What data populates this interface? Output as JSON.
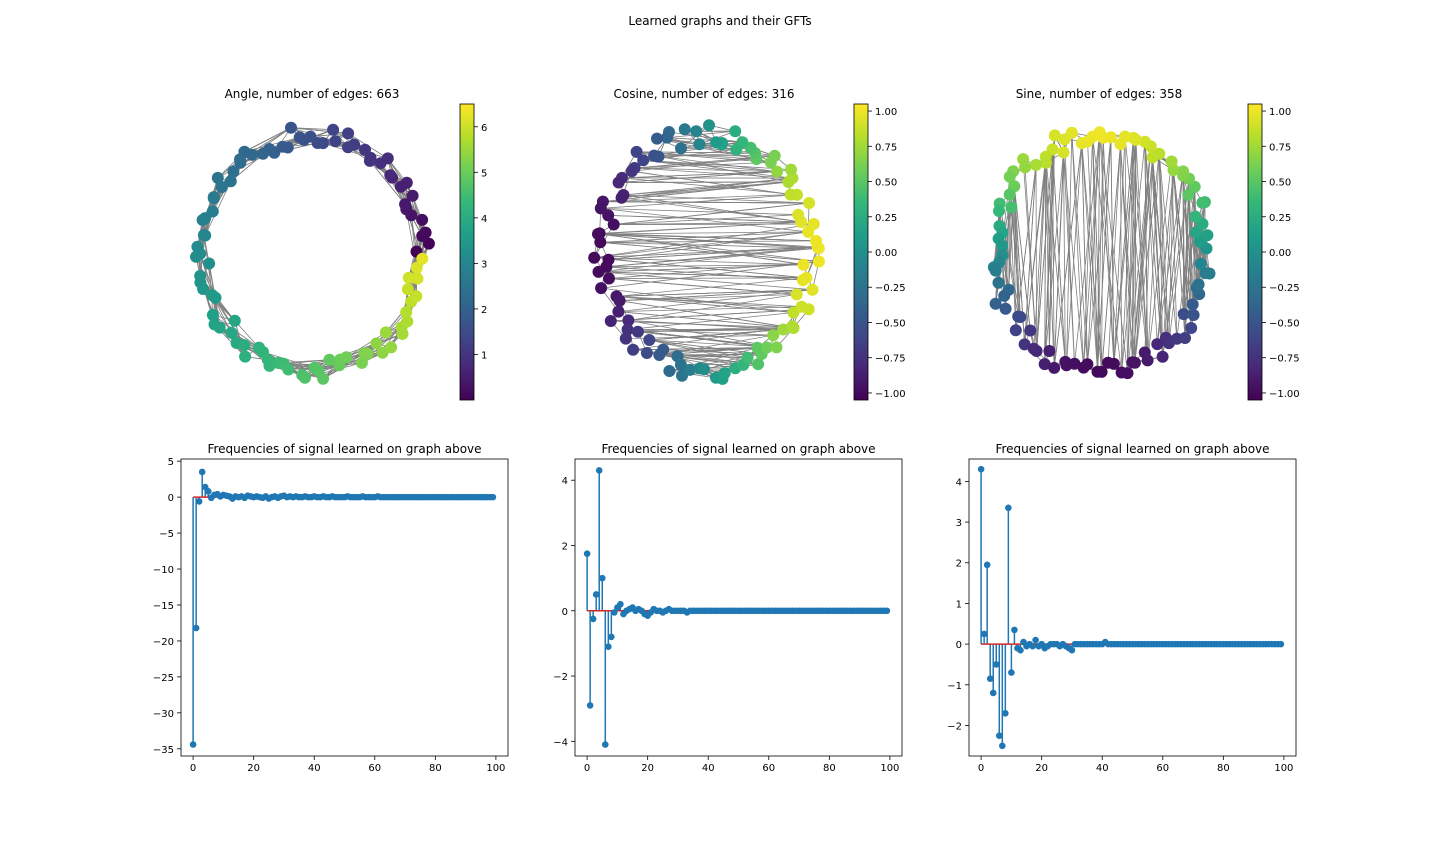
{
  "figure_title": "Learned graphs and their GFTs",
  "colors": {
    "edge": "#808080",
    "stem": "#1f77b4",
    "baseline": "#d62728",
    "viridis": [
      "#440154",
      "#482878",
      "#3e4989",
      "#31688e",
      "#26828e",
      "#1f9e89",
      "#35b779",
      "#6ece58",
      "#b5de2b",
      "#fde725"
    ]
  },
  "chart_data": [
    {
      "type": "scatter",
      "kind": "graph",
      "title": "Angle, number of edges: 663",
      "node_count": 100,
      "edge_count": 663,
      "colorbar": {
        "range": [
          0,
          6.5
        ],
        "ticks": [
          "1",
          "2",
          "3",
          "4",
          "5",
          "6"
        ]
      }
    },
    {
      "type": "scatter",
      "kind": "graph",
      "title": "Cosine, number of edges: 316",
      "node_count": 100,
      "edge_count": 316,
      "colorbar": {
        "range": [
          -1.05,
          1.05
        ],
        "ticks": [
          "−1.00",
          "−0.75",
          "−0.50",
          "−0.25",
          "0.00",
          "0.25",
          "0.50",
          "0.75",
          "1.00"
        ]
      }
    },
    {
      "type": "scatter",
      "kind": "graph",
      "title": "Sine, number of edges: 358",
      "node_count": 100,
      "edge_count": 358,
      "colorbar": {
        "range": [
          -1.05,
          1.05
        ],
        "ticks": [
          "−1.00",
          "−0.75",
          "−0.50",
          "−0.25",
          "0.00",
          "0.25",
          "0.50",
          "0.75",
          "1.00"
        ]
      }
    },
    {
      "type": "stem",
      "title": "Frequencies of signal learned on graph above",
      "xlim": [
        -4,
        104
      ],
      "ylim": [
        -36,
        5.3
      ],
      "xticks": [
        "0",
        "20",
        "40",
        "60",
        "80",
        "100"
      ],
      "yticks": [
        "−35",
        "−30",
        "−25",
        "−20",
        "−15",
        "−10",
        "−5",
        "0",
        "5"
      ],
      "points": [
        [
          0,
          -34.4
        ],
        [
          1,
          -18.2
        ],
        [
          2,
          -0.6
        ],
        [
          3,
          3.5
        ],
        [
          4,
          1.4
        ],
        [
          5,
          0.8
        ],
        [
          6,
          -0.1
        ],
        [
          7,
          0.3
        ],
        [
          8,
          0.4
        ],
        [
          9,
          0.1
        ],
        [
          10,
          0.3
        ],
        [
          11,
          0.2
        ],
        [
          12,
          0.1
        ],
        [
          13,
          -0.2
        ],
        [
          14,
          0.1
        ],
        [
          15,
          0.0
        ],
        [
          16,
          0.1
        ],
        [
          17,
          -0.1
        ],
        [
          18,
          0.2
        ],
        [
          19,
          0.1
        ],
        [
          20,
          0.0
        ],
        [
          21,
          0.1
        ],
        [
          22,
          0.0
        ],
        [
          23,
          -0.1
        ],
        [
          24,
          0.1
        ],
        [
          25,
          -0.2
        ],
        [
          26,
          0.0
        ],
        [
          27,
          0.1
        ],
        [
          28,
          -0.1
        ],
        [
          29,
          0.1
        ],
        [
          30,
          0.2
        ],
        [
          31,
          0.0
        ],
        [
          32,
          0.1
        ],
        [
          33,
          0.0
        ],
        [
          34,
          0.1
        ],
        [
          35,
          0.0
        ],
        [
          36,
          0.0
        ],
        [
          37,
          0.1
        ],
        [
          38,
          0.0
        ],
        [
          39,
          0.0
        ],
        [
          40,
          0.1
        ],
        [
          41,
          0.0
        ],
        [
          42,
          0.0
        ],
        [
          43,
          0.1
        ],
        [
          44,
          0.0
        ],
        [
          45,
          0.0
        ],
        [
          46,
          0.1
        ],
        [
          47,
          0.0
        ],
        [
          48,
          0.0
        ],
        [
          49,
          0.0
        ],
        [
          50,
          0.0
        ],
        [
          51,
          0.1
        ],
        [
          52,
          0.0
        ],
        [
          53,
          0.0
        ],
        [
          54,
          0.0
        ],
        [
          55,
          0.0
        ],
        [
          56,
          0.1
        ],
        [
          57,
          0.0
        ],
        [
          58,
          0.0
        ],
        [
          59,
          0.0
        ],
        [
          60,
          0.0
        ],
        [
          61,
          0.1
        ],
        [
          62,
          0.0
        ],
        [
          63,
          0.0
        ],
        [
          64,
          0.0
        ],
        [
          65,
          0.0
        ],
        [
          66,
          0.0
        ],
        [
          67,
          0.0
        ],
        [
          68,
          0.0
        ],
        [
          69,
          0.0
        ],
        [
          70,
          0.0
        ],
        [
          71,
          0.0
        ],
        [
          72,
          0.0
        ],
        [
          73,
          0.0
        ],
        [
          74,
          0.0
        ],
        [
          75,
          0.0
        ],
        [
          76,
          0.0
        ],
        [
          77,
          0.0
        ],
        [
          78,
          0.0
        ],
        [
          79,
          0.0
        ],
        [
          80,
          0.0
        ],
        [
          81,
          0.0
        ],
        [
          82,
          0.0
        ],
        [
          83,
          0.0
        ],
        [
          84,
          0.0
        ],
        [
          85,
          0.0
        ],
        [
          86,
          0.0
        ],
        [
          87,
          0.0
        ],
        [
          88,
          0.0
        ],
        [
          89,
          0.0
        ],
        [
          90,
          0.0
        ],
        [
          91,
          0.0
        ],
        [
          92,
          0.0
        ],
        [
          93,
          0.0
        ],
        [
          94,
          0.0
        ],
        [
          95,
          0.0
        ],
        [
          96,
          0.0
        ],
        [
          97,
          0.0
        ],
        [
          98,
          0.0
        ],
        [
          99,
          0.0
        ]
      ]
    },
    {
      "type": "stem",
      "title": "Frequencies of signal learned on graph above",
      "xlim": [
        -4,
        104
      ],
      "ylim": [
        -4.45,
        4.65
      ],
      "xticks": [
        "0",
        "20",
        "40",
        "60",
        "80",
        "100"
      ],
      "yticks": [
        "−4",
        "−2",
        "0",
        "2",
        "4"
      ],
      "points": [
        [
          0,
          1.75
        ],
        [
          1,
          -2.9
        ],
        [
          2,
          -0.25
        ],
        [
          3,
          0.5
        ],
        [
          4,
          4.3
        ],
        [
          5,
          1.0
        ],
        [
          6,
          -4.1
        ],
        [
          7,
          -1.1
        ],
        [
          8,
          -0.8
        ],
        [
          9,
          -0.05
        ],
        [
          10,
          0.1
        ],
        [
          11,
          0.2
        ],
        [
          12,
          -0.1
        ],
        [
          13,
          0.0
        ],
        [
          14,
          0.05
        ],
        [
          15,
          0.1
        ],
        [
          16,
          0.0
        ],
        [
          17,
          0.05
        ],
        [
          18,
          0.0
        ],
        [
          19,
          -0.1
        ],
        [
          20,
          -0.15
        ],
        [
          21,
          -0.05
        ],
        [
          22,
          0.05
        ],
        [
          23,
          0.0
        ],
        [
          24,
          0.0
        ],
        [
          25,
          -0.05
        ],
        [
          26,
          0.0
        ],
        [
          27,
          0.05
        ],
        [
          28,
          0.0
        ],
        [
          29,
          0.0
        ],
        [
          30,
          0.0
        ],
        [
          31,
          0.0
        ],
        [
          32,
          0.0
        ],
        [
          33,
          -0.05
        ],
        [
          34,
          0.0
        ],
        [
          35,
          0.0
        ],
        [
          36,
          0.0
        ],
        [
          37,
          0.0
        ],
        [
          38,
          0.0
        ],
        [
          39,
          0.0
        ],
        [
          40,
          0.0
        ],
        [
          41,
          0.0
        ],
        [
          42,
          0.0
        ],
        [
          43,
          0.0
        ],
        [
          44,
          0.0
        ],
        [
          45,
          0.0
        ],
        [
          46,
          0.0
        ],
        [
          47,
          0.0
        ],
        [
          48,
          0.0
        ],
        [
          49,
          0.0
        ],
        [
          50,
          0.0
        ],
        [
          51,
          0.0
        ],
        [
          52,
          0.0
        ],
        [
          53,
          0.0
        ],
        [
          54,
          0.0
        ],
        [
          55,
          0.0
        ],
        [
          56,
          0.0
        ],
        [
          57,
          0.0
        ],
        [
          58,
          0.0
        ],
        [
          59,
          0.0
        ],
        [
          60,
          0.0
        ],
        [
          61,
          0.0
        ],
        [
          62,
          0.0
        ],
        [
          63,
          0.0
        ],
        [
          64,
          0.0
        ],
        [
          65,
          0.0
        ],
        [
          66,
          0.0
        ],
        [
          67,
          0.0
        ],
        [
          68,
          0.0
        ],
        [
          69,
          0.0
        ],
        [
          70,
          0.0
        ],
        [
          71,
          0.0
        ],
        [
          72,
          0.0
        ],
        [
          73,
          0.0
        ],
        [
          74,
          0.0
        ],
        [
          75,
          0.0
        ],
        [
          76,
          0.0
        ],
        [
          77,
          0.0
        ],
        [
          78,
          0.0
        ],
        [
          79,
          0.0
        ],
        [
          80,
          0.0
        ],
        [
          81,
          0.0
        ],
        [
          82,
          0.0
        ],
        [
          83,
          0.0
        ],
        [
          84,
          0.0
        ],
        [
          85,
          0.0
        ],
        [
          86,
          0.0
        ],
        [
          87,
          0.0
        ],
        [
          88,
          0.0
        ],
        [
          89,
          0.0
        ],
        [
          90,
          0.0
        ],
        [
          91,
          0.0
        ],
        [
          92,
          0.0
        ],
        [
          93,
          0.0
        ],
        [
          94,
          0.0
        ],
        [
          95,
          0.0
        ],
        [
          96,
          0.0
        ],
        [
          97,
          0.0
        ],
        [
          98,
          0.0
        ],
        [
          99,
          0.0
        ]
      ]
    },
    {
      "type": "stem",
      "title": "Frequencies of signal learned on graph above",
      "xlim": [
        -4,
        104
      ],
      "ylim": [
        -2.75,
        4.55
      ],
      "xticks": [
        "0",
        "20",
        "40",
        "60",
        "80",
        "100"
      ],
      "yticks": [
        "−2",
        "−1",
        "0",
        "1",
        "2",
        "3",
        "4"
      ],
      "points": [
        [
          0,
          4.3
        ],
        [
          1,
          0.25
        ],
        [
          2,
          1.95
        ],
        [
          3,
          -0.85
        ],
        [
          4,
          -1.2
        ],
        [
          5,
          -0.5
        ],
        [
          6,
          -2.25
        ],
        [
          7,
          -2.5
        ],
        [
          8,
          -1.7
        ],
        [
          9,
          3.35
        ],
        [
          10,
          -0.7
        ],
        [
          11,
          0.35
        ],
        [
          12,
          -0.1
        ],
        [
          13,
          -0.15
        ],
        [
          14,
          0.05
        ],
        [
          15,
          -0.05
        ],
        [
          16,
          0.0
        ],
        [
          17,
          -0.05
        ],
        [
          18,
          0.1
        ],
        [
          19,
          -0.05
        ],
        [
          20,
          0.0
        ],
        [
          21,
          -0.1
        ],
        [
          22,
          -0.05
        ],
        [
          23,
          0.0
        ],
        [
          24,
          0.0
        ],
        [
          25,
          0.0
        ],
        [
          26,
          -0.05
        ],
        [
          27,
          0.0
        ],
        [
          28,
          -0.05
        ],
        [
          29,
          -0.1
        ],
        [
          30,
          -0.15
        ],
        [
          31,
          0.0
        ],
        [
          32,
          0.0
        ],
        [
          33,
          0.0
        ],
        [
          34,
          0.0
        ],
        [
          35,
          0.0
        ],
        [
          36,
          0.0
        ],
        [
          37,
          0.0
        ],
        [
          38,
          0.0
        ],
        [
          39,
          0.0
        ],
        [
          40,
          0.0
        ],
        [
          41,
          0.05
        ],
        [
          42,
          0.0
        ],
        [
          43,
          0.0
        ],
        [
          44,
          0.0
        ],
        [
          45,
          0.0
        ],
        [
          46,
          0.0
        ],
        [
          47,
          0.0
        ],
        [
          48,
          0.0
        ],
        [
          49,
          0.0
        ],
        [
          50,
          0.0
        ],
        [
          51,
          0.0
        ],
        [
          52,
          0.0
        ],
        [
          53,
          0.0
        ],
        [
          54,
          0.0
        ],
        [
          55,
          0.0
        ],
        [
          56,
          0.0
        ],
        [
          57,
          0.0
        ],
        [
          58,
          0.0
        ],
        [
          59,
          0.0
        ],
        [
          60,
          0.0
        ],
        [
          61,
          0.0
        ],
        [
          62,
          0.0
        ],
        [
          63,
          0.0
        ],
        [
          64,
          0.0
        ],
        [
          65,
          0.0
        ],
        [
          66,
          0.0
        ],
        [
          67,
          0.0
        ],
        [
          68,
          0.0
        ],
        [
          69,
          0.0
        ],
        [
          70,
          0.0
        ],
        [
          71,
          0.0
        ],
        [
          72,
          0.0
        ],
        [
          73,
          0.0
        ],
        [
          74,
          0.0
        ],
        [
          75,
          0.0
        ],
        [
          76,
          0.0
        ],
        [
          77,
          0.0
        ],
        [
          78,
          0.0
        ],
        [
          79,
          0.0
        ],
        [
          80,
          0.0
        ],
        [
          81,
          0.0
        ],
        [
          82,
          0.0
        ],
        [
          83,
          0.0
        ],
        [
          84,
          0.0
        ],
        [
          85,
          0.0
        ],
        [
          86,
          0.0
        ],
        [
          87,
          0.0
        ],
        [
          88,
          0.0
        ],
        [
          89,
          0.0
        ],
        [
          90,
          0.0
        ],
        [
          91,
          0.0
        ],
        [
          92,
          0.0
        ],
        [
          93,
          0.0
        ],
        [
          94,
          0.0
        ],
        [
          95,
          0.0
        ],
        [
          96,
          0.0
        ],
        [
          97,
          0.0
        ],
        [
          98,
          0.0
        ],
        [
          99,
          0.0
        ]
      ]
    }
  ]
}
